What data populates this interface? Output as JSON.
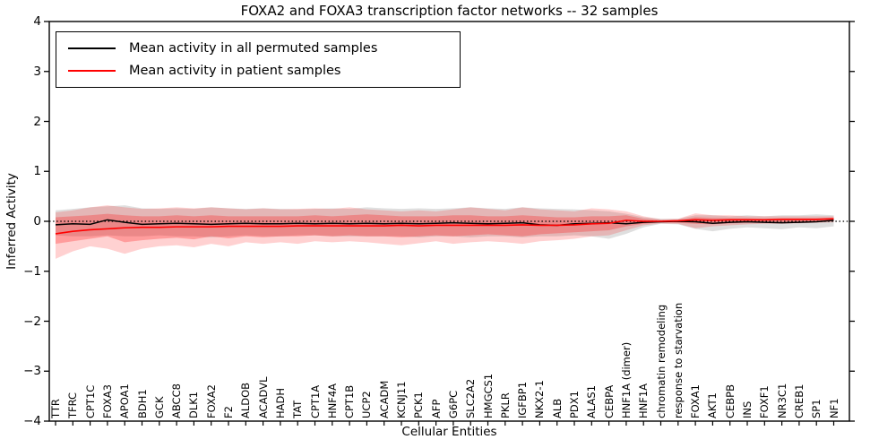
{
  "chart_data": {
    "type": "line",
    "title": "FOXA2 and FOXA3 transcription factor networks -- 32 samples",
    "xlabel": "Cellular Entities",
    "ylabel": "Inferred Activity",
    "ylim": [
      -4,
      4
    ],
    "yticks": [
      4,
      3,
      2,
      1,
      0,
      -1,
      -2,
      -3,
      -4
    ],
    "grid": false,
    "legend_position": "upper left",
    "zero_line": {
      "value": 0,
      "style": "dotted",
      "color": "#000000"
    },
    "categories": [
      "TTR",
      "TFRC",
      "CPT1C",
      "FOXA3",
      "APOA1",
      "BDH1",
      "GCK",
      "ABCC8",
      "DLK1",
      "FOXA2",
      "F2",
      "ALDOB",
      "ACADVL",
      "HADH",
      "TAT",
      "CPT1A",
      "HNF4A",
      "CPT1B",
      "UCP2",
      "ACADM",
      "KCNJ11",
      "PCK1",
      "AFP",
      "G6PC",
      "SLC2A2",
      "HMGCS1",
      "PKLR",
      "IGFBP1",
      "NKX2-1",
      "ALB",
      "PDX1",
      "ALAS1",
      "CEBPA",
      "HNF1A (dimer)",
      "HNF1A",
      "chromatin remodeling",
      "response to starvation",
      "FOXA1",
      "AKT1",
      "CEBPB",
      "INS",
      "FOXF1",
      "NR3C1",
      "CREB1",
      "SP1",
      "NF1"
    ],
    "series": [
      {
        "name": "Mean activity in all permuted samples",
        "color": "#000000",
        "values": [
          -0.07,
          -0.05,
          -0.06,
          0.03,
          -0.02,
          -0.06,
          -0.05,
          -0.04,
          -0.05,
          -0.06,
          -0.05,
          -0.04,
          -0.05,
          -0.05,
          -0.04,
          -0.05,
          -0.04,
          -0.05,
          -0.04,
          -0.05,
          -0.04,
          -0.05,
          -0.04,
          -0.03,
          -0.04,
          -0.05,
          -0.04,
          -0.03,
          -0.07,
          -0.08,
          -0.05,
          -0.04,
          -0.03,
          -0.05,
          -0.02,
          -0.01,
          0.0,
          -0.01,
          -0.04,
          -0.02,
          -0.01,
          -0.02,
          -0.03,
          -0.02,
          -0.01,
          0.02
        ]
      },
      {
        "name": "Mean activity in patient samples",
        "color": "#ff0000",
        "values": [
          -0.25,
          -0.2,
          -0.17,
          -0.15,
          -0.13,
          -0.12,
          -0.12,
          -0.11,
          -0.11,
          -0.11,
          -0.1,
          -0.1,
          -0.1,
          -0.1,
          -0.09,
          -0.09,
          -0.09,
          -0.09,
          -0.09,
          -0.09,
          -0.08,
          -0.09,
          -0.08,
          -0.08,
          -0.08,
          -0.08,
          -0.08,
          -0.07,
          -0.08,
          -0.08,
          -0.07,
          -0.05,
          -0.04,
          0.02,
          0.0,
          0.0,
          0.01,
          0.03,
          0.02,
          0.03,
          0.03,
          0.03,
          0.04,
          0.04,
          0.04,
          0.05
        ]
      }
    ],
    "bands": [
      {
        "name": "permuted-range",
        "fill": "rgba(128,128,128,0.25)",
        "hi": [
          0.22,
          0.25,
          0.28,
          0.3,
          0.32,
          0.26,
          0.25,
          0.26,
          0.25,
          0.28,
          0.26,
          0.25,
          0.26,
          0.25,
          0.24,
          0.25,
          0.26,
          0.25,
          0.28,
          0.26,
          0.25,
          0.26,
          0.25,
          0.26,
          0.28,
          0.26,
          0.25,
          0.28,
          0.26,
          0.25,
          0.24,
          0.22,
          0.2,
          0.15,
          0.08,
          0.05,
          0.05,
          0.12,
          0.12,
          0.1,
          0.12,
          0.1,
          0.12,
          0.12,
          0.14,
          0.12
        ],
        "lo": [
          -0.28,
          -0.3,
          -0.3,
          -0.28,
          -0.3,
          -0.3,
          -0.28,
          -0.3,
          -0.3,
          -0.32,
          -0.3,
          -0.28,
          -0.3,
          -0.3,
          -0.28,
          -0.28,
          -0.3,
          -0.3,
          -0.3,
          -0.3,
          -0.3,
          -0.32,
          -0.3,
          -0.3,
          -0.32,
          -0.3,
          -0.3,
          -0.32,
          -0.3,
          -0.3,
          -0.28,
          -0.3,
          -0.35,
          -0.25,
          -0.12,
          -0.05,
          -0.06,
          -0.15,
          -0.2,
          -0.15,
          -0.12,
          -0.14,
          -0.16,
          -0.12,
          -0.14,
          -0.1
        ]
      },
      {
        "name": "patient-range-outer",
        "fill": "rgba(255,0,0,0.18)",
        "hi": [
          0.18,
          0.22,
          0.28,
          0.32,
          0.28,
          0.25,
          0.26,
          0.28,
          0.26,
          0.28,
          0.26,
          0.24,
          0.26,
          0.24,
          0.25,
          0.26,
          0.25,
          0.28,
          0.24,
          0.22,
          0.2,
          0.22,
          0.2,
          0.24,
          0.28,
          0.25,
          0.22,
          0.28,
          0.24,
          0.22,
          0.2,
          0.26,
          0.24,
          0.2,
          0.1,
          0.04,
          0.05,
          0.16,
          0.12,
          0.12,
          0.1,
          0.1,
          0.1,
          0.1,
          0.1,
          0.1
        ],
        "lo": [
          -0.75,
          -0.6,
          -0.5,
          -0.55,
          -0.65,
          -0.55,
          -0.5,
          -0.48,
          -0.52,
          -0.45,
          -0.5,
          -0.42,
          -0.45,
          -0.42,
          -0.45,
          -0.4,
          -0.42,
          -0.4,
          -0.42,
          -0.45,
          -0.48,
          -0.44,
          -0.4,
          -0.45,
          -0.42,
          -0.4,
          -0.42,
          -0.45,
          -0.4,
          -0.38,
          -0.35,
          -0.3,
          -0.28,
          -0.18,
          -0.08,
          -0.04,
          -0.05,
          -0.14,
          -0.1,
          -0.08,
          -0.06,
          -0.05,
          -0.05,
          -0.04,
          -0.03,
          -0.02
        ]
      },
      {
        "name": "patient-range-inner",
        "fill": "rgba(255,0,0,0.25)",
        "hi": [
          0.08,
          0.1,
          0.12,
          0.15,
          0.12,
          0.1,
          0.1,
          0.12,
          0.1,
          0.12,
          0.1,
          0.1,
          0.1,
          0.1,
          0.1,
          0.12,
          0.1,
          0.12,
          0.14,
          0.12,
          0.1,
          0.1,
          0.1,
          0.12,
          0.12,
          0.1,
          0.1,
          0.12,
          0.1,
          0.08,
          0.08,
          0.1,
          0.1,
          0.12,
          0.05,
          0.02,
          0.03,
          0.08,
          0.07,
          0.06,
          0.06,
          0.05,
          0.06,
          0.06,
          0.06,
          0.07
        ],
        "lo": [
          -0.45,
          -0.4,
          -0.35,
          -0.3,
          -0.42,
          -0.38,
          -0.35,
          -0.33,
          -0.36,
          -0.3,
          -0.34,
          -0.3,
          -0.32,
          -0.3,
          -0.3,
          -0.28,
          -0.3,
          -0.28,
          -0.3,
          -0.3,
          -0.32,
          -0.3,
          -0.28,
          -0.3,
          -0.28,
          -0.26,
          -0.28,
          -0.3,
          -0.26,
          -0.24,
          -0.22,
          -0.2,
          -0.18,
          -0.1,
          -0.05,
          -0.02,
          -0.03,
          -0.05,
          -0.06,
          -0.04,
          -0.03,
          -0.03,
          -0.02,
          -0.02,
          -0.01,
          0.0
        ]
      }
    ]
  }
}
